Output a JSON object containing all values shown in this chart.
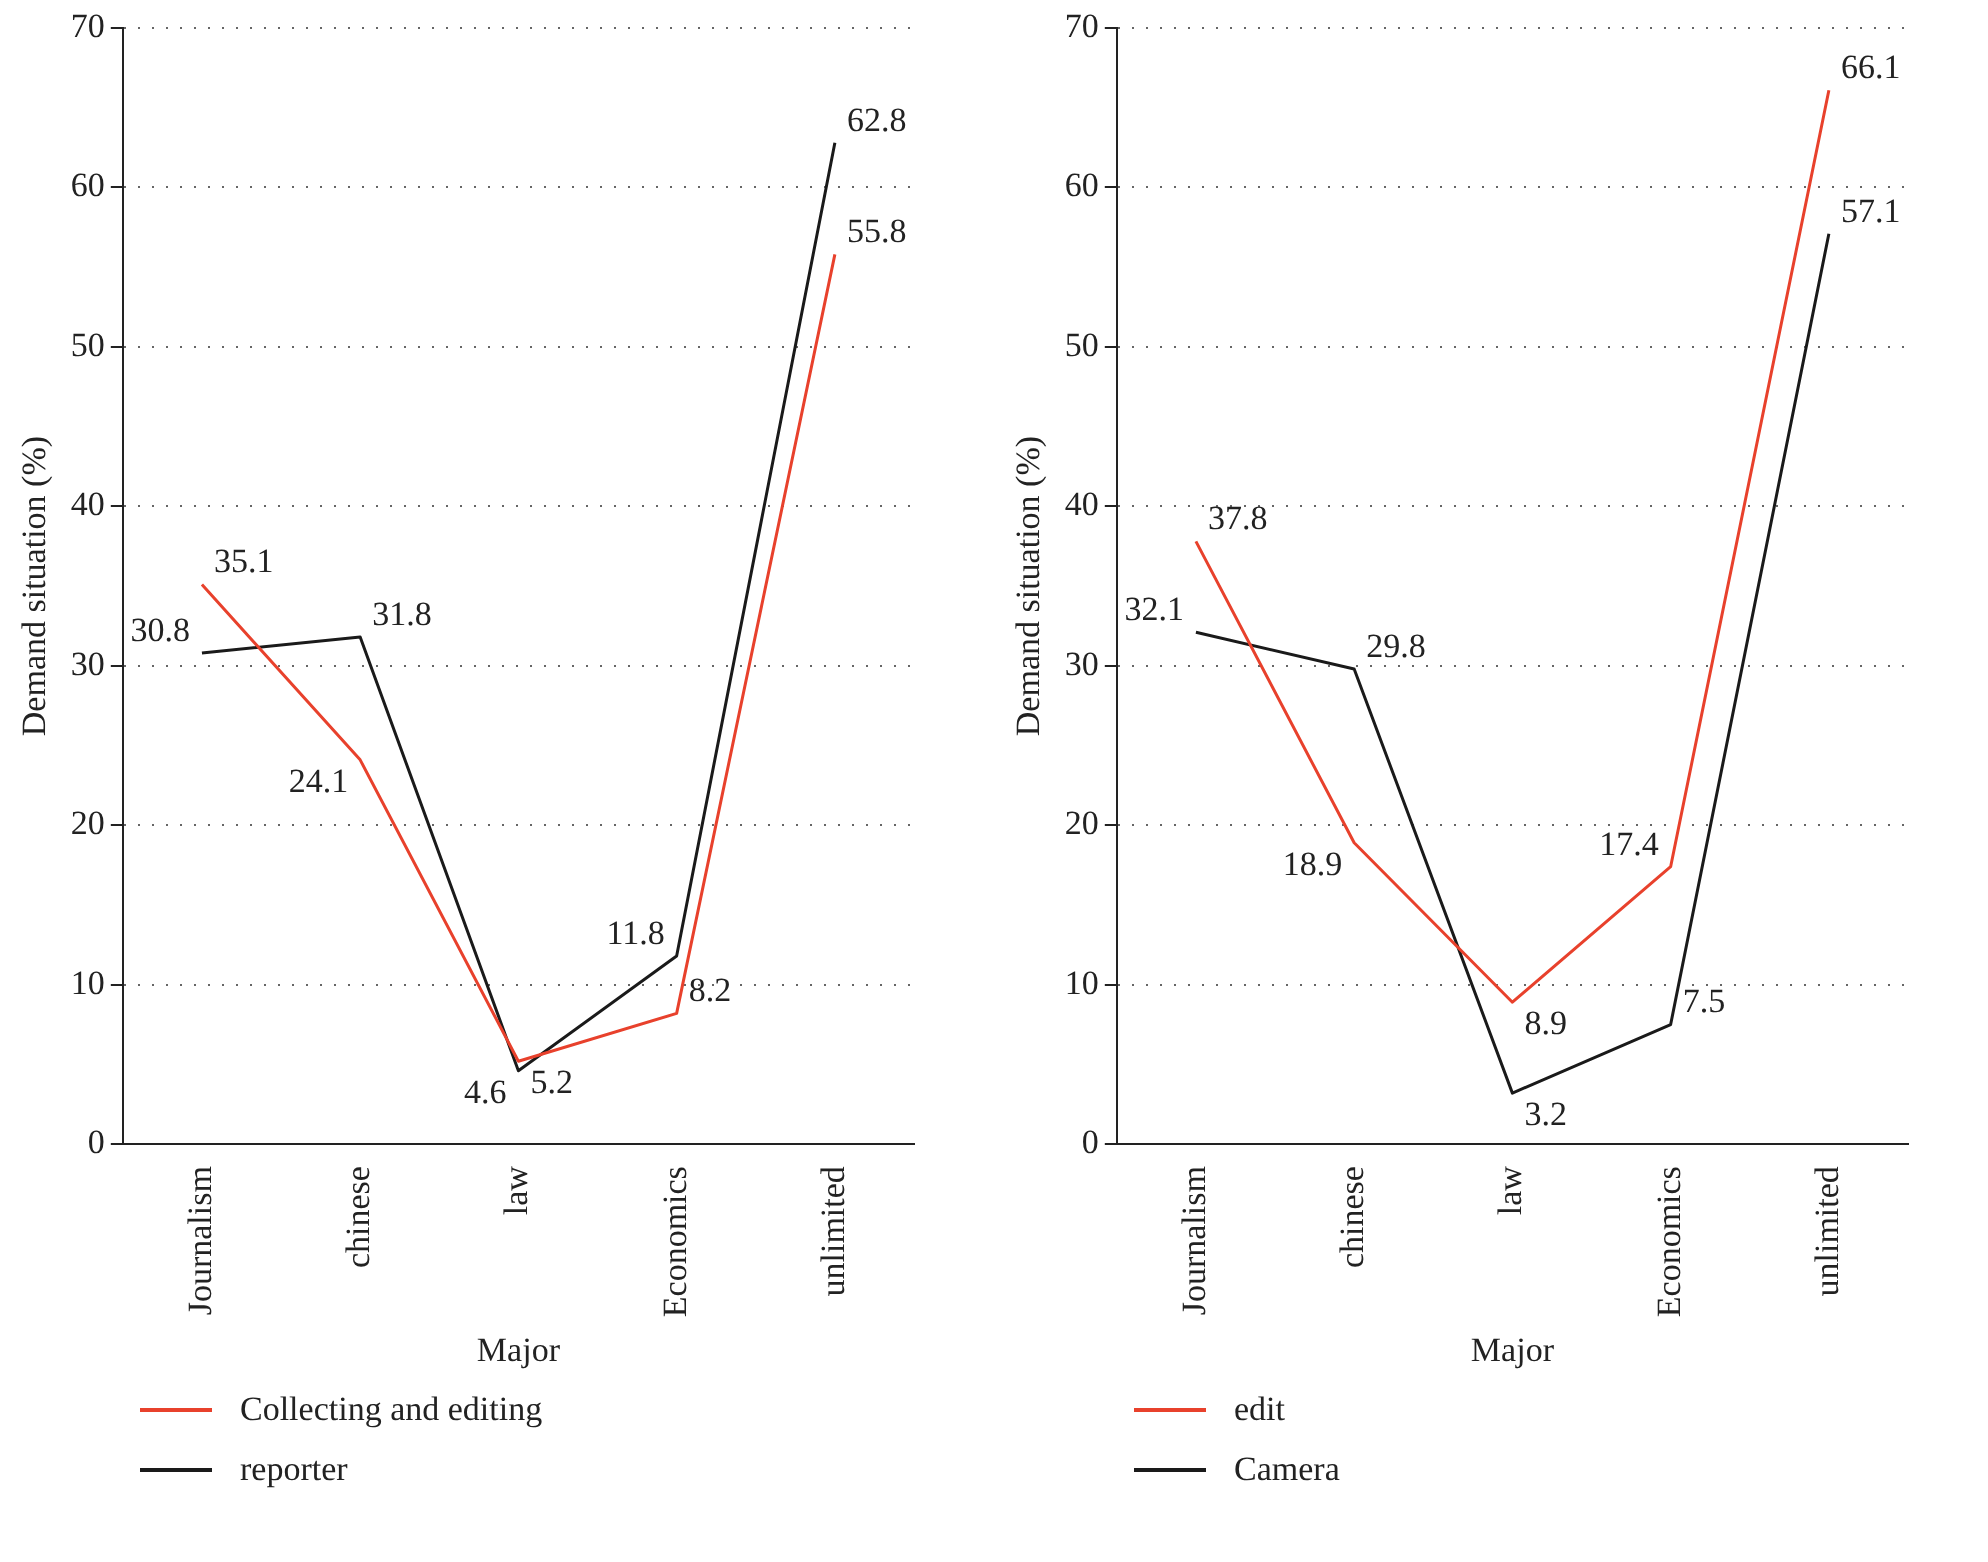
{
  "chart_data": [
    {
      "type": "line",
      "xlabel": "Major",
      "ylabel": "Demand situation (%)",
      "categories": [
        "Journalism",
        "chinese",
        "law",
        "Economics",
        "unlimited"
      ],
      "series": [
        {
          "name": "Collecting and editing",
          "color": "#e8412c",
          "values": [
            35.1,
            24.1,
            5.2,
            8.2,
            55.8
          ]
        },
        {
          "name": "reporter",
          "color": "#1a1a1a",
          "values": [
            30.8,
            31.8,
            4.6,
            11.8,
            62.8
          ]
        }
      ],
      "ylim": [
        0,
        70
      ],
      "yticks": [
        0,
        10,
        20,
        30,
        40,
        50,
        60,
        70
      ],
      "grid": "y",
      "legend": "bottom",
      "data_labels": true,
      "marker": "none",
      "line_style": "solid"
    },
    {
      "type": "line",
      "xlabel": "Major",
      "ylabel": "Demand situation (%)",
      "categories": [
        "Journalism",
        "chinese",
        "law",
        "Economics",
        "unlimited"
      ],
      "series": [
        {
          "name": "edit",
          "color": "#e8412c",
          "values": [
            37.8,
            18.9,
            8.9,
            17.4,
            66.1
          ]
        },
        {
          "name": "Camera",
          "color": "#1a1a1a",
          "values": [
            32.1,
            29.8,
            3.2,
            7.5,
            57.1
          ]
        }
      ],
      "ylim": [
        0,
        70
      ],
      "yticks": [
        0,
        10,
        20,
        30,
        40,
        50,
        60,
        70
      ],
      "grid": "y",
      "legend": "bottom",
      "data_labels": true,
      "marker": "none",
      "line_style": "solid"
    }
  ]
}
